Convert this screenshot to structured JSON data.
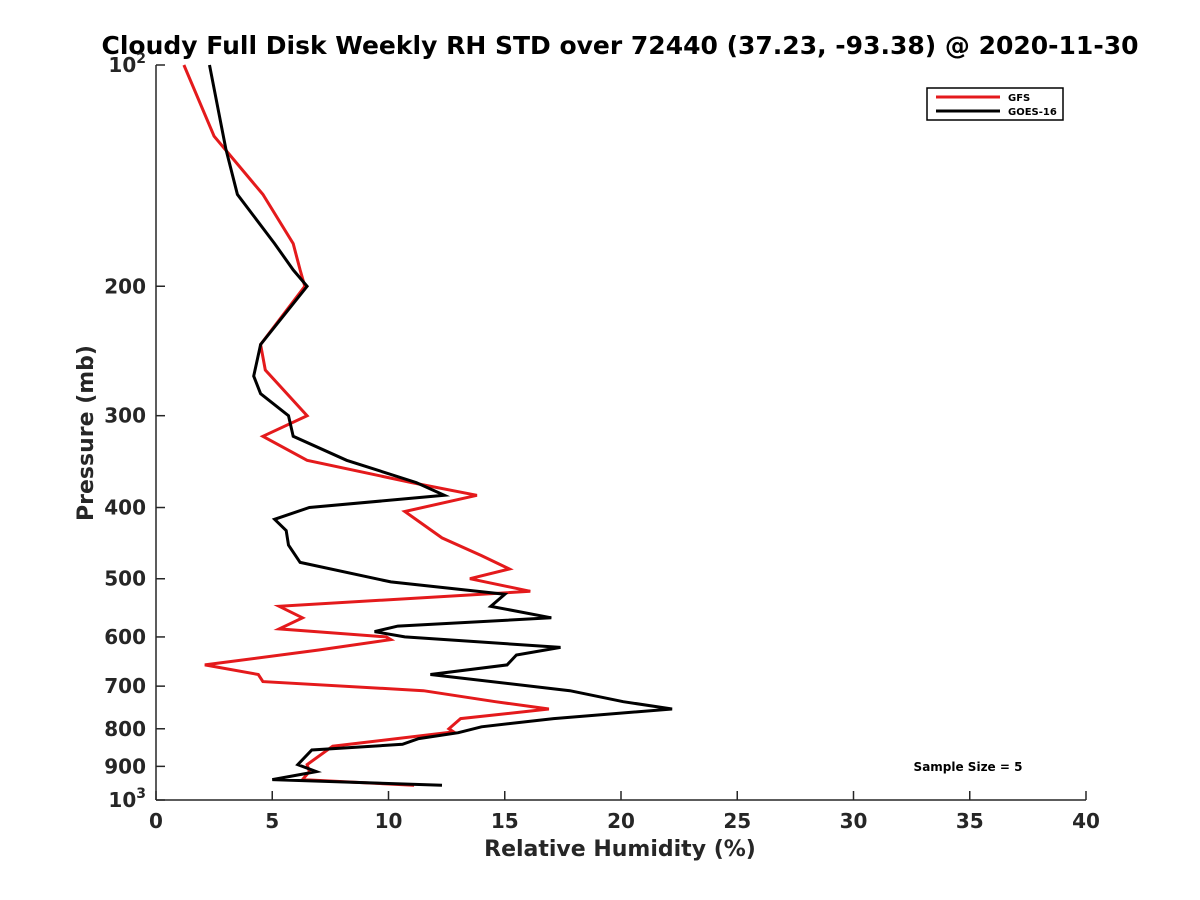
{
  "chart_data": {
    "type": "line",
    "title": "Cloudy Full Disk Weekly RH STD over 72440 (37.23, -93.38) @ 2020-11-30",
    "xlabel": "Relative Humidity (%)",
    "ylabel": "Pressure (mb)",
    "xlim": [
      0,
      40
    ],
    "ylim": [
      100,
      1000
    ],
    "y_scale": "log",
    "y_reversed": true,
    "x_ticks": [
      "0",
      "5",
      "10",
      "15",
      "20",
      "25",
      "30",
      "35",
      "40"
    ],
    "y_ticks": [
      {
        "value": 100,
        "base": "10",
        "exp": "2"
      },
      {
        "value": 200,
        "label": "200"
      },
      {
        "value": 300,
        "label": "300"
      },
      {
        "value": 400,
        "label": "400"
      },
      {
        "value": 500,
        "label": "500"
      },
      {
        "value": 600,
        "label": "600"
      },
      {
        "value": 700,
        "label": "700"
      },
      {
        "value": 800,
        "label": "800"
      },
      {
        "value": 900,
        "label": "900"
      },
      {
        "value": 1000,
        "base": "10",
        "exp": "3"
      }
    ],
    "grid": false,
    "legend": {
      "position": "top-right"
    },
    "annotation": "Sample Size = 5",
    "series": [
      {
        "name": "GFS",
        "color": "#e41a1c",
        "points": [
          [
            1.2,
            100
          ],
          [
            2.5,
            125
          ],
          [
            4.6,
            150
          ],
          [
            5.9,
            175
          ],
          [
            6.2,
            190
          ],
          [
            6.4,
            200
          ],
          [
            4.5,
            240
          ],
          [
            4.7,
            260
          ],
          [
            6.5,
            300
          ],
          [
            4.6,
            320
          ],
          [
            6.5,
            345
          ],
          [
            11,
            370
          ],
          [
            13.8,
            385
          ],
          [
            10.7,
            405
          ],
          [
            12.3,
            440
          ],
          [
            14,
            465
          ],
          [
            15.2,
            485
          ],
          [
            13.5,
            500
          ],
          [
            16.1,
            520
          ],
          [
            5.3,
            545
          ],
          [
            6.3,
            565
          ],
          [
            5.3,
            585
          ],
          [
            9.9,
            600
          ],
          [
            10.1,
            605
          ],
          [
            7,
            625
          ],
          [
            2.1,
            655
          ],
          [
            4.4,
            675
          ],
          [
            4.6,
            690
          ],
          [
            11.5,
            710
          ],
          [
            14.6,
            735
          ],
          [
            16.9,
            752
          ],
          [
            13.1,
            775
          ],
          [
            12.6,
            800
          ],
          [
            12.8,
            808
          ],
          [
            7.6,
            845
          ],
          [
            6.5,
            895
          ],
          [
            6.6,
            915
          ],
          [
            6.3,
            938
          ],
          [
            11.1,
            955
          ]
        ]
      },
      {
        "name": "GOES-16",
        "color": "#000000",
        "points": [
          [
            2.3,
            100
          ],
          [
            3,
            130
          ],
          [
            3.5,
            150
          ],
          [
            5.1,
            175
          ],
          [
            5.9,
            190
          ],
          [
            6.5,
            200
          ],
          [
            4.5,
            240
          ],
          [
            4.2,
            265
          ],
          [
            4.5,
            280
          ],
          [
            5.7,
            300
          ],
          [
            5.9,
            320
          ],
          [
            8.2,
            345
          ],
          [
            11.2,
            370
          ],
          [
            12.4,
            385
          ],
          [
            6.6,
            400
          ],
          [
            5.1,
            415
          ],
          [
            5.6,
            430
          ],
          [
            5.7,
            450
          ],
          [
            6.2,
            475
          ],
          [
            10.1,
            505
          ],
          [
            15,
            525
          ],
          [
            14.4,
            545
          ],
          [
            17,
            565
          ],
          [
            10.4,
            580
          ],
          [
            9.4,
            590
          ],
          [
            10.7,
            600
          ],
          [
            17.4,
            620
          ],
          [
            15.5,
            635
          ],
          [
            15.1,
            655
          ],
          [
            11.8,
            675
          ],
          [
            17.8,
            710
          ],
          [
            20.1,
            735
          ],
          [
            22.2,
            752
          ],
          [
            17.1,
            775
          ],
          [
            14,
            795
          ],
          [
            13,
            810
          ],
          [
            11.3,
            825
          ],
          [
            10.6,
            840
          ],
          [
            6.7,
            855
          ],
          [
            6.1,
            895
          ],
          [
            6.9,
            915
          ],
          [
            5,
            938
          ],
          [
            12.3,
            955
          ]
        ]
      }
    ]
  }
}
